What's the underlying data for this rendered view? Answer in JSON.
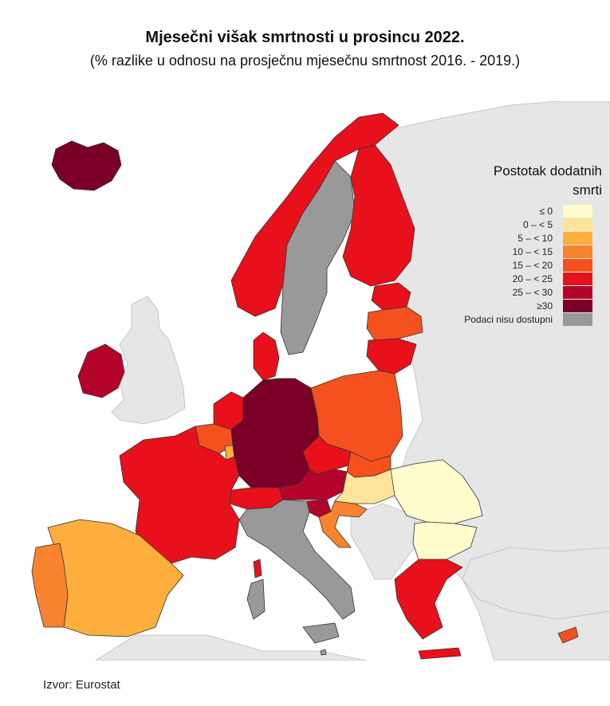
{
  "title": "Mjesečni višak smrtnosti u prosincu 2022.",
  "subtitle": "(% razlike u odnosu na prosječnu mjesečnu smrtnost 2016. - 2019.)",
  "legend": {
    "title_line1": "Postotak dodatnih",
    "title_line2": "smrti",
    "items": [
      {
        "label": "≤ 0",
        "color": "#fffbcc"
      },
      {
        "label": "0 – < 5",
        "color": "#fde49a"
      },
      {
        "label": "5 – < 10",
        "color": "#fdae3c"
      },
      {
        "label": "10 – < 15",
        "color": "#f8832f"
      },
      {
        "label": "15 – < 20",
        "color": "#f4511e"
      },
      {
        "label": "20 – < 25",
        "color": "#e8101a"
      },
      {
        "label": "25 – < 30",
        "color": "#b5042a"
      },
      {
        "label": "≥30",
        "color": "#7a0028"
      },
      {
        "label": "Podaci nisu dostupni",
        "color": "#999999"
      }
    ]
  },
  "regions": [
    {
      "name": "iceland",
      "class": "≥30"
    },
    {
      "name": "ireland",
      "class": "25 – < 30"
    },
    {
      "name": "norway",
      "class": "20 – < 25"
    },
    {
      "name": "sweden",
      "class": "Podaci nisu dostupni"
    },
    {
      "name": "finland",
      "class": "20 – < 25"
    },
    {
      "name": "estonia",
      "class": "20 – < 25"
    },
    {
      "name": "latvia",
      "class": "15 – < 20"
    },
    {
      "name": "lithuania",
      "class": "20 – < 25"
    },
    {
      "name": "denmark",
      "class": "20 – < 25"
    },
    {
      "name": "netherlands",
      "class": "20 – < 25"
    },
    {
      "name": "belgium",
      "class": "15 – < 20"
    },
    {
      "name": "luxembourg",
      "class": "5 – < 10"
    },
    {
      "name": "germany",
      "class": "≥30"
    },
    {
      "name": "poland",
      "class": "15 – < 20"
    },
    {
      "name": "czechia",
      "class": "20 – < 25"
    },
    {
      "name": "slovakia",
      "class": "15 – < 20"
    },
    {
      "name": "austria",
      "class": "25 – < 30"
    },
    {
      "name": "switzerland",
      "class": "20 – < 25"
    },
    {
      "name": "liechtenstein",
      "class": "25 – < 30"
    },
    {
      "name": "slovenia",
      "class": "25 – < 30"
    },
    {
      "name": "hungary",
      "class": "0 – < 5"
    },
    {
      "name": "croatia",
      "class": "10 – < 15"
    },
    {
      "name": "romania",
      "class": "≤ 0"
    },
    {
      "name": "bulgaria",
      "class": "≤ 0"
    },
    {
      "name": "france",
      "class": "20 – < 25"
    },
    {
      "name": "spain",
      "class": "5 – < 10"
    },
    {
      "name": "portugal",
      "class": "10 – < 15"
    },
    {
      "name": "italy",
      "class": "Podaci nisu dostupni"
    },
    {
      "name": "greece",
      "class": "20 – < 25"
    },
    {
      "name": "cyprus",
      "class": "15 – < 20"
    },
    {
      "name": "malta",
      "class": "Podaci nisu dostupni"
    }
  ],
  "source": "Izvor: Eurostat"
}
